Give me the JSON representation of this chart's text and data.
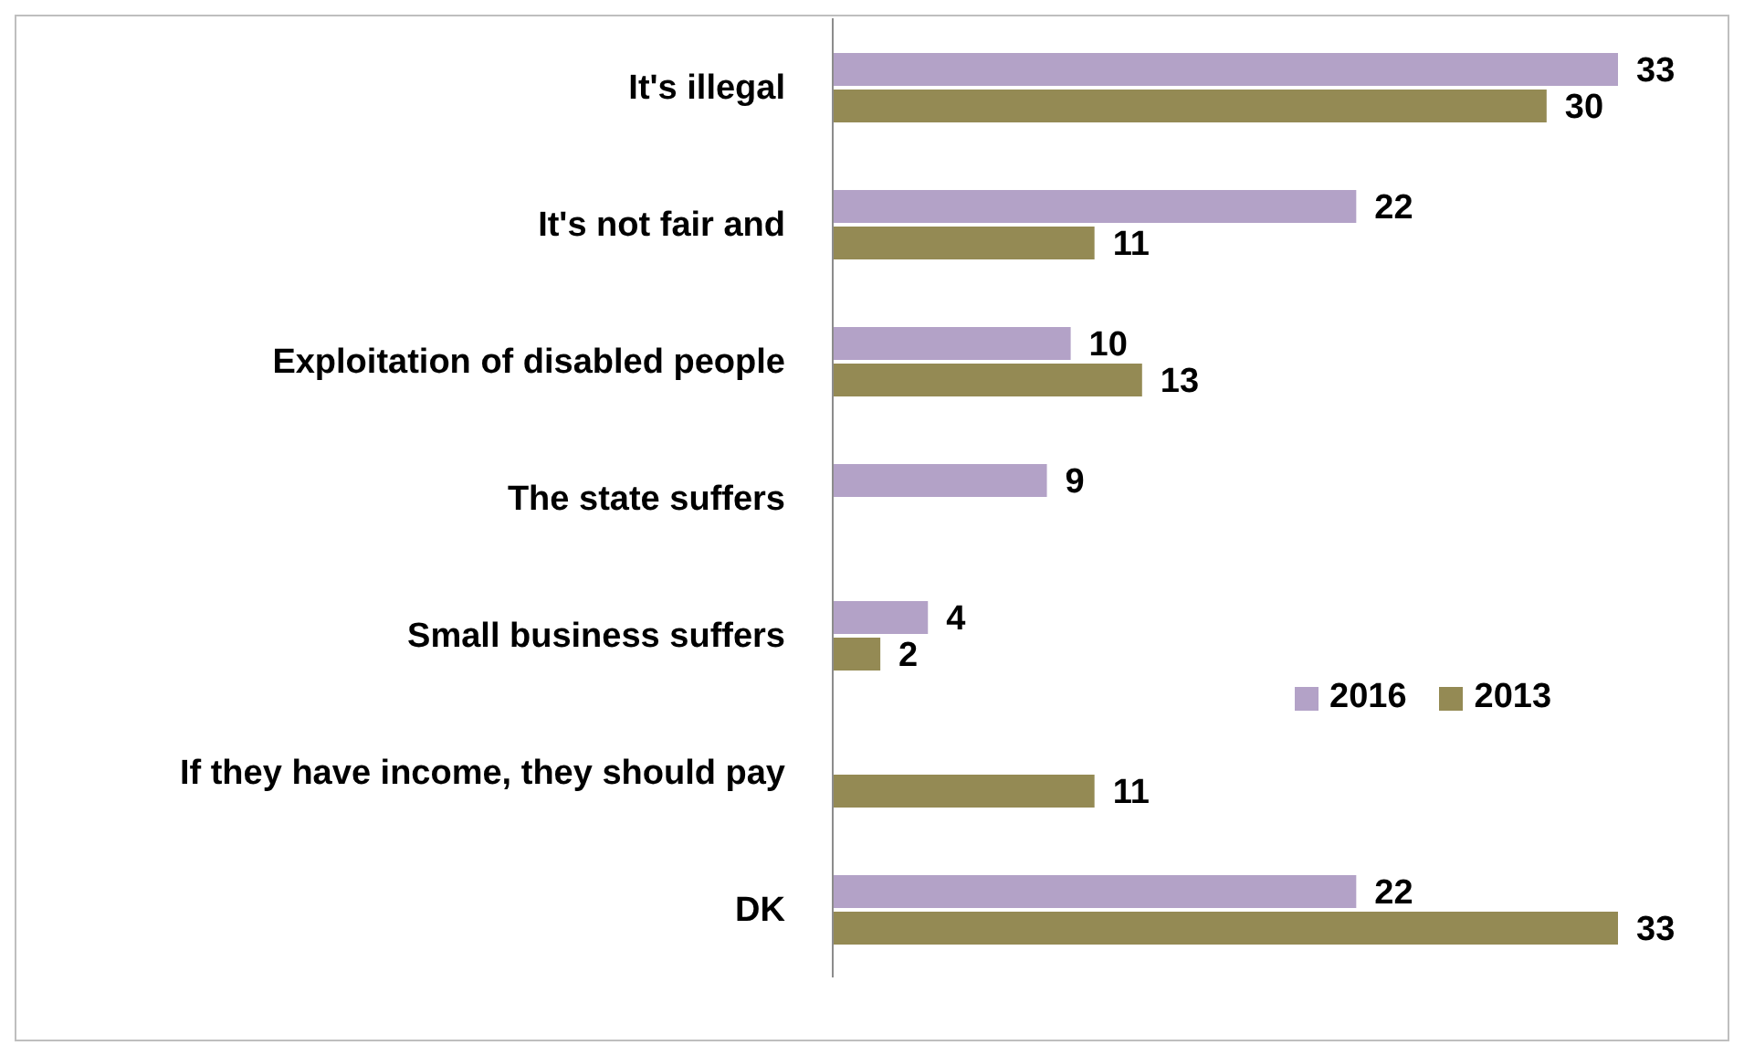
{
  "chart_data": {
    "type": "bar",
    "orientation": "horizontal",
    "data_labels": true,
    "legend": "right",
    "categories": [
      "It's illegal",
      "It's not fair and ",
      "Exploitation of disabled people",
      "The state suffers",
      "Small business suffers",
      "If they have income, they should pay",
      "DK"
    ],
    "series": [
      {
        "name": "2016",
        "color": "#b3a2c7",
        "values": [
          33,
          22,
          10,
          9,
          4,
          null,
          22
        ]
      },
      {
        "name": "2013",
        "color": "#948a54",
        "values": [
          30,
          11,
          13,
          null,
          2,
          11,
          33
        ]
      }
    ]
  }
}
